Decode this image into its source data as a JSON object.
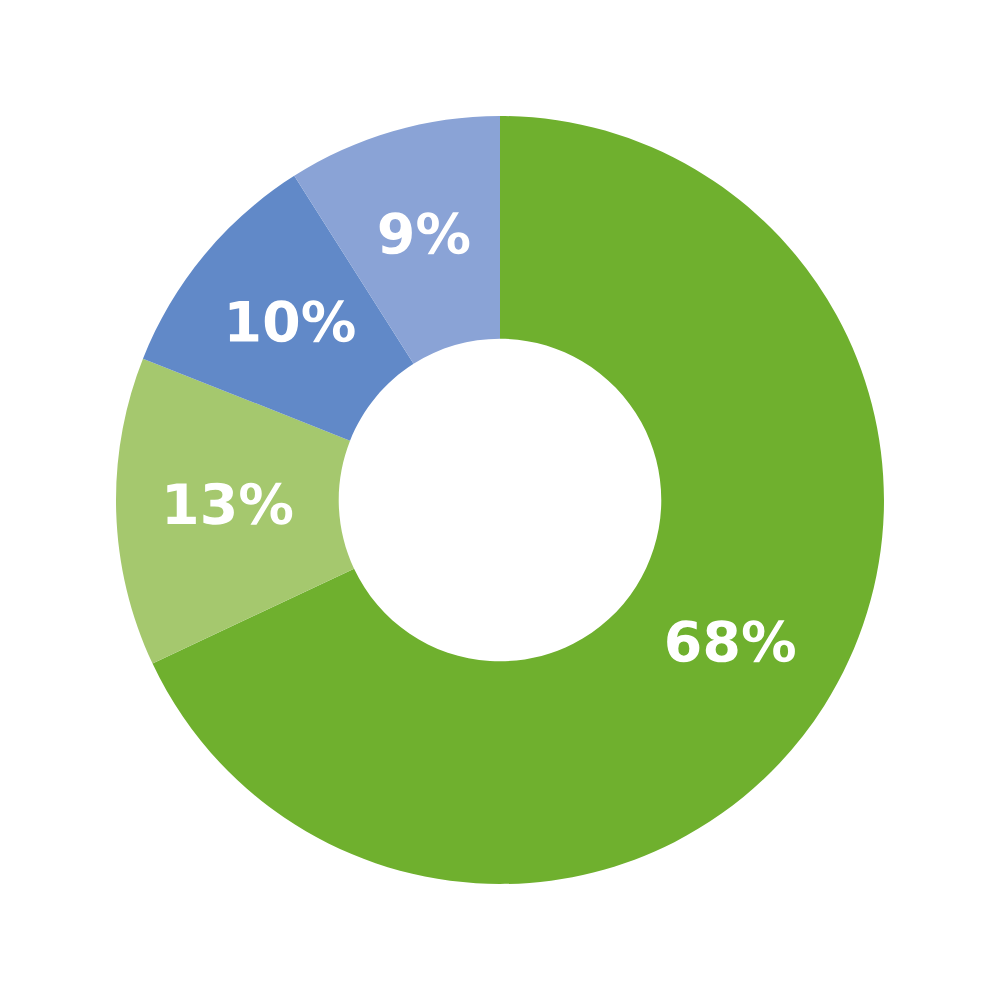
{
  "chart_data": {
    "type": "donut",
    "categories": [
      null,
      null,
      null,
      null
    ],
    "values": [
      68,
      13,
      10,
      9
    ],
    "colors": [
      "#6fb02e",
      "#a5c86e",
      "#6189c8",
      "#8aa3d6"
    ],
    "value_labels": [
      "68%",
      "13%",
      "10%",
      "9%"
    ]
  }
}
